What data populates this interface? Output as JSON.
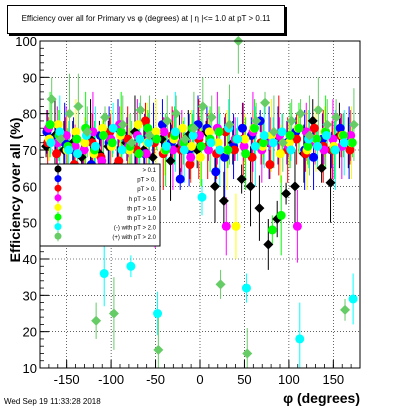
{
  "title": "Efficiency over all for Primary vs φ (degrees) at | η |<= 1.0 at pT > 0.11",
  "footer": "Wed Sep 19 11:33:28 2018",
  "chart_data": {
    "type": "scatter",
    "title": "Efficiency over all for Primary vs φ (degrees) at | η |<= 1.0 at pT > 0.11",
    "xlabel": "φ (degrees)",
    "ylabel": "Efficiency over all (%)",
    "xlim": [
      -180,
      180
    ],
    "ylim": [
      10,
      100
    ],
    "x_ticks": [
      "-150",
      "-100",
      "-50",
      "0",
      "50",
      "100",
      "150"
    ],
    "y_ticks": [
      "10",
      "20",
      "30",
      "40",
      "50",
      "60",
      "70",
      "80",
      "90",
      "100"
    ],
    "grid": true,
    "legend_placement": "middle-left",
    "legend_entries_visible": [
      "> 0.1",
      "pT > 0.",
      "pT > 0.",
      "h pT > 0.5",
      "th pT > 1.0",
      "th pT > 1.0",
      "(-) with pT > 2.0",
      "(+) with pT > 2.0"
    ],
    "series": [
      {
        "color": "#000000",
        "marker": "diamond",
        "x": [
          -170,
          -160,
          -150,
          -140,
          -130,
          -120,
          -110,
          -100,
          -90,
          -80,
          -70,
          -60,
          -50,
          -40,
          -30,
          -20,
          -10,
          0,
          10,
          20,
          30,
          40,
          50,
          60,
          70,
          80,
          90,
          100,
          110,
          120,
          130,
          140,
          150,
          160,
          170
        ],
        "y": [
          71,
          74,
          70,
          72,
          68,
          73,
          69,
          71,
          66,
          72,
          75,
          70,
          68,
          73,
          67,
          71,
          74,
          70,
          75,
          60,
          56,
          72,
          62,
          60,
          54,
          44,
          51,
          58,
          60,
          69,
          78,
          65,
          61,
          74,
          72
        ]
      },
      {
        "color": "#0000ff",
        "marker": "circle",
        "x": [
          -170,
          -160,
          -150,
          -140,
          -130,
          -120,
          -110,
          -100,
          -90,
          -80,
          -70,
          -60,
          -50,
          -40,
          -30,
          -20,
          -10,
          0,
          10,
          20,
          30,
          40,
          50,
          60,
          70,
          80,
          90,
          100,
          110,
          120,
          130,
          140,
          150,
          160,
          170
        ],
        "y": [
          75,
          73,
          72,
          70,
          61,
          66,
          74,
          72,
          76,
          73,
          65,
          69,
          74,
          77,
          72,
          62,
          70,
          77,
          76,
          64,
          68,
          71,
          76,
          74,
          78,
          72,
          74,
          72,
          75,
          70,
          68,
          73,
          70,
          76,
          72
        ]
      },
      {
        "color": "#ff0000",
        "marker": "circle",
        "x": [
          -170,
          -160,
          -150,
          -140,
          -130,
          -120,
          -110,
          -100,
          -90,
          -80,
          -70,
          -60,
          -50,
          -40,
          -30,
          -20,
          -10,
          0,
          10,
          20,
          30,
          40,
          50,
          60,
          70,
          80,
          90,
          100,
          110,
          120,
          130,
          140,
          150,
          160,
          170
        ],
        "y": [
          72,
          69,
          74,
          66,
          59,
          72,
          68,
          75,
          67,
          73,
          70,
          78,
          72,
          69,
          74,
          70,
          66,
          73,
          71,
          69,
          75,
          70,
          73,
          68,
          72,
          66,
          74,
          70,
          73,
          69,
          76,
          71,
          70,
          74,
          70
        ]
      },
      {
        "color": "#ff00ff",
        "marker": "circle",
        "x": [
          -170,
          -160,
          -150,
          -140,
          -130,
          -120,
          -110,
          -100,
          -90,
          -80,
          -70,
          -60,
          -50,
          -40,
          -30,
          -20,
          -10,
          0,
          10,
          20,
          30,
          40,
          50,
          60,
          70,
          80,
          90,
          100,
          110,
          120,
          130,
          140,
          150,
          160,
          170
        ],
        "y": [
          76,
          72,
          74,
          71,
          70,
          75,
          67,
          73,
          77,
          71,
          74,
          69,
          49,
          75,
          70,
          72,
          68,
          74,
          70,
          76,
          49,
          73,
          71,
          75,
          70,
          72,
          74,
          71,
          49,
          75,
          72,
          70,
          73,
          71,
          74
        ]
      },
      {
        "color": "#ffff00",
        "marker": "circle",
        "x": [
          -170,
          -160,
          -150,
          -140,
          -130,
          -120,
          -110,
          -100,
          -90,
          -80,
          -70,
          -60,
          -50,
          -40,
          -30,
          -20,
          -10,
          0,
          10,
          20,
          30,
          40,
          50,
          60,
          70,
          80,
          90,
          100,
          110,
          120,
          130,
          140,
          150,
          160,
          170
        ],
        "y": [
          73,
          77,
          70,
          75,
          72,
          69,
          76,
          71,
          74,
          70,
          77,
          72,
          75,
          70,
          73,
          76,
          71,
          68,
          75,
          72,
          70,
          49,
          73,
          76,
          71,
          74,
          69,
          72,
          76,
          70,
          73,
          75,
          71,
          74,
          72
        ]
      },
      {
        "color": "#00ff00",
        "marker": "circle",
        "x": [
          -170,
          -160,
          -150,
          -140,
          -130,
          -120,
          -110,
          -100,
          -90,
          -80,
          -70,
          -60,
          -50,
          -40,
          -30,
          -20,
          -10,
          0,
          10,
          20,
          30,
          40,
          50,
          60,
          70,
          80,
          90,
          100,
          110,
          120,
          130,
          140,
          150,
          160,
          170
        ],
        "y": [
          77,
          74,
          71,
          73,
          76,
          70,
          74,
          72,
          75,
          71,
          69,
          76,
          73,
          70,
          74,
          72,
          76,
          71,
          73,
          75,
          70,
          73,
          69,
          76,
          72,
          48,
          52,
          74,
          76,
          71,
          73,
          75,
          70,
          74,
          72
        ]
      },
      {
        "color": "#00ffff",
        "marker": "circle",
        "x": [
          -170,
          -160,
          -150,
          -140,
          -130,
          -120,
          -110,
          -100,
          -90,
          -80,
          -70,
          -60,
          -50,
          -40,
          -30,
          -20,
          -10,
          0,
          10,
          20,
          30,
          40,
          50,
          60,
          70,
          80,
          90,
          100,
          110,
          120,
          130,
          140,
          150,
          160,
          170
        ],
        "y": [
          72,
          75,
          70,
          69,
          74,
          71,
          36,
          76,
          70,
          38,
          73,
          72,
          25,
          71,
          75,
          70,
          74,
          57,
          72,
          70,
          76,
          73,
          32,
          71,
          74,
          72,
          75,
          70,
          18,
          73,
          71,
          74,
          70,
          72,
          29
        ]
      },
      {
        "color": "#66cc66",
        "marker": "diamond",
        "x": [
          -170,
          -160,
          -150,
          -140,
          -130,
          -120,
          -110,
          -100,
          -90,
          -80,
          -70,
          -60,
          -50,
          -40,
          -30,
          -20,
          -10,
          0,
          10,
          20,
          30,
          40,
          50,
          60,
          70,
          80,
          90,
          100,
          110,
          120,
          130,
          140,
          150,
          160,
          170
        ],
        "y": [
          84,
          73,
          80,
          82,
          75,
          23,
          79,
          25,
          77,
          72,
          81,
          74,
          15,
          78,
          80,
          73,
          76,
          82,
          79,
          33,
          77,
          100,
          14,
          78,
          83,
          75,
          72,
          78,
          80,
          74,
          81,
          77,
          79,
          26,
          77
        ]
      }
    ]
  }
}
